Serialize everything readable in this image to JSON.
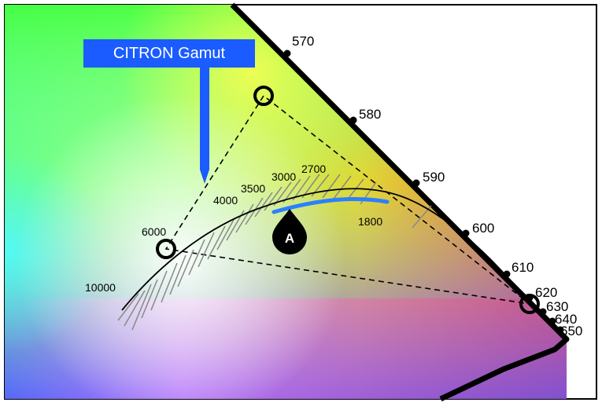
{
  "gamut": {
    "label": "CITRON Gamut"
  },
  "wavelengths": [
    {
      "label": "570"
    },
    {
      "label": "580"
    },
    {
      "label": "590"
    },
    {
      "label": "600"
    },
    {
      "label": "610"
    },
    {
      "label": "620"
    },
    {
      "label": "630"
    },
    {
      "label": "640"
    },
    {
      "label": "650"
    }
  ],
  "cct": [
    {
      "label": "10000"
    },
    {
      "label": "6000"
    },
    {
      "label": "4000"
    },
    {
      "label": "3500"
    },
    {
      "label": "3000"
    },
    {
      "label": "2700"
    },
    {
      "label": "1800"
    }
  ],
  "marker": {
    "label": "A"
  },
  "colors": {
    "callout": "#1a5cff",
    "highlight": "#2a80ff",
    "locus": "#000000",
    "isotherm": "#888888"
  }
}
